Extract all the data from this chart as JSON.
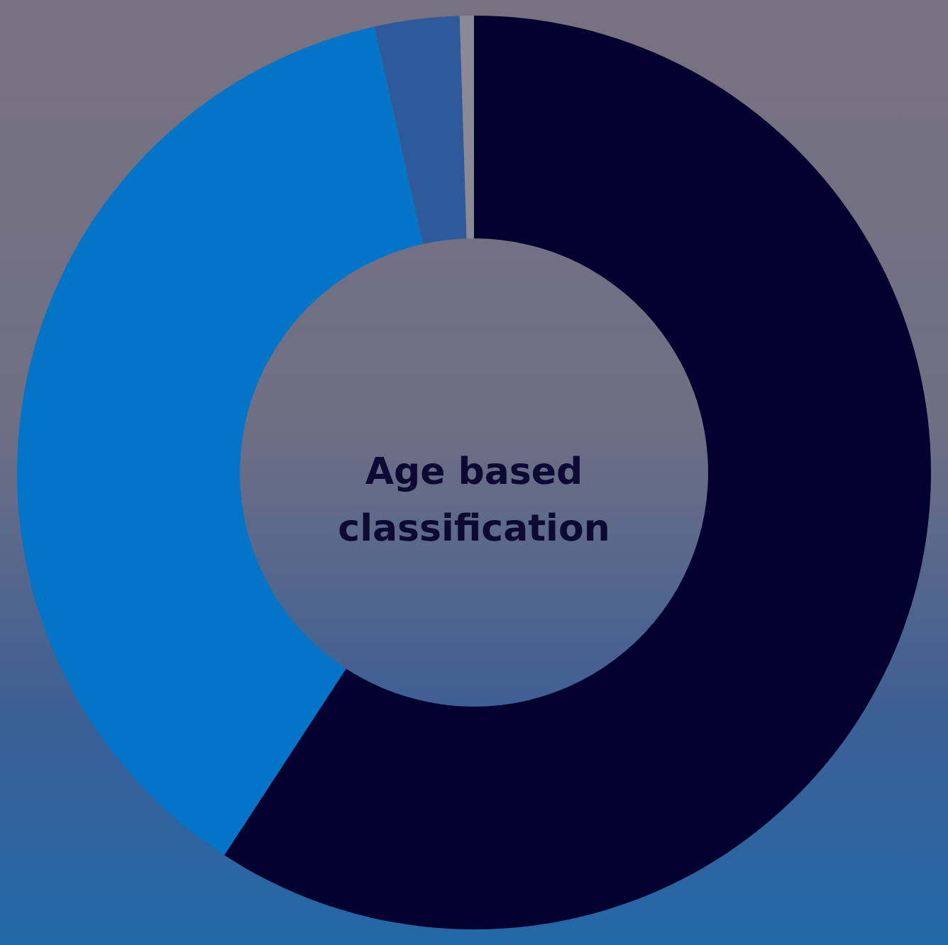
{
  "chart_data": {
    "type": "donut",
    "title": "Age based classification",
    "categories": [
      null,
      null,
      null,
      null
    ],
    "values": [
      59.2,
      37.3,
      3.0,
      0.5
    ],
    "colors": [
      "#02002e",
      "#0275c8",
      "#2e5a9c",
      "#8a8a96"
    ]
  }
}
